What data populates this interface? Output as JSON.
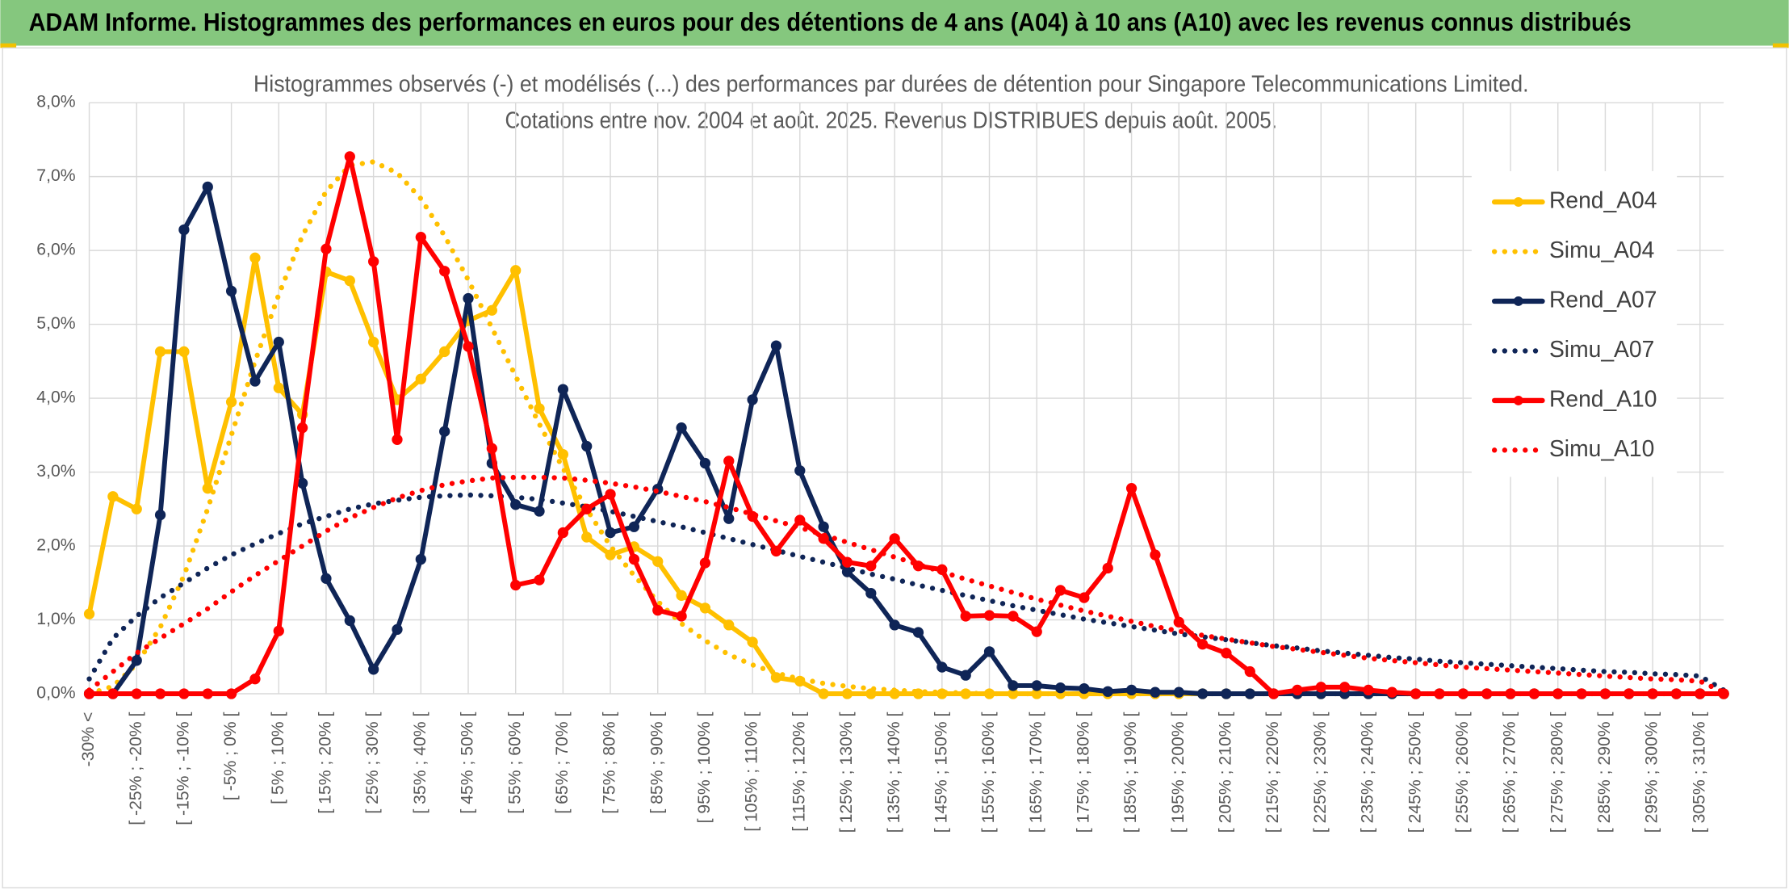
{
  "chart_data": {
    "type": "line",
    "title": "ADAM Informe. Histogrammes des performances en euros pour des détentions de 4 ans (A04) à 10 ans (A10) avec les revenus connus distribués",
    "subtitle": [
      "Histogrammes observés (-) et modélisés (...) des performances par durées de détention pour Singapore Telecommunications Limited.",
      "Cotations entre nov. 2004 et août. 2025. Revenus DISTRIBUES depuis août. 2005."
    ],
    "categories": [
      "-30% <",
      null,
      "[ -25% ; -20% [",
      null,
      "[ -15% ; -10% [",
      null,
      "[ -5% ; 0% [",
      null,
      "[ 5% ; 10% [",
      null,
      "[ 15% ; 20% [",
      null,
      "[ 25% ; 30% [",
      null,
      "[ 35% ; 40% [",
      null,
      "[ 45% ; 50% [",
      null,
      "[ 55% ; 60% [",
      null,
      "[ 65% ; 70% [",
      null,
      "[ 75% ; 80% [",
      null,
      "[ 85% ; 90% [",
      null,
      "[ 95% ; 100% [",
      null,
      "[ 105% ; 110% [",
      null,
      "[ 115% ; 120% [",
      null,
      "[ 125% ; 130% [",
      null,
      "[ 135% ; 140% [",
      null,
      "[ 145% ; 150% [",
      null,
      "[ 155% ; 160% [",
      null,
      "[ 165% ; 170% [",
      null,
      "[ 175% ; 180% [",
      null,
      "[ 185% ; 190% [",
      null,
      "[ 195% ; 200% [",
      null,
      "[ 205% ; 210% [",
      null,
      "[ 215% ; 220% [",
      null,
      "[ 225% ; 230% [",
      null,
      "[ 235% ; 240% [",
      null,
      "[ 245% ; 250% [",
      null,
      "[ 255% ; 260% [",
      null,
      "[ 265% ; 270% [",
      null,
      "[ 275% ; 280% [",
      null,
      "[ 285% ; 290% [",
      null,
      "[ 295% ; 300% [",
      null,
      "[ 305% ; 310% [",
      null
    ],
    "ylim": [
      0,
      8
    ],
    "yticks": [
      {
        "value": 0,
        "label": "0,0%"
      },
      {
        "value": 1,
        "label": "1,0%"
      },
      {
        "value": 2,
        "label": "2,0%"
      },
      {
        "value": 3,
        "label": "3,0%"
      },
      {
        "value": 4,
        "label": "4,0%"
      },
      {
        "value": 5,
        "label": "5,0%"
      },
      {
        "value": 6,
        "label": "6,0%"
      },
      {
        "value": 7,
        "label": "7,0%"
      },
      {
        "value": 8,
        "label": "8,0%"
      }
    ],
    "grid": true,
    "legend": "right",
    "series": [
      {
        "name": "Rend_A04",
        "color": "#FFC000",
        "style": "solid",
        "markers": true,
        "values": [
          1.08,
          2.67,
          2.5,
          4.63,
          4.63,
          2.78,
          3.95,
          5.9,
          4.14,
          3.78,
          5.71,
          5.59,
          4.76,
          3.98,
          4.26,
          4.63,
          5.05,
          5.19,
          5.73,
          3.86,
          3.24,
          2.12,
          1.88,
          1.99,
          1.79,
          1.33,
          1.16,
          0.93,
          0.7,
          0.22,
          0.17,
          0,
          0,
          0,
          0,
          0,
          0,
          0,
          0,
          0,
          0,
          0,
          0,
          0,
          0,
          0,
          0,
          0,
          0,
          0,
          0,
          0,
          0,
          0,
          0,
          0,
          0,
          0,
          0,
          0,
          0,
          0,
          0,
          0,
          0,
          0,
          0,
          0,
          0,
          0
        ]
      },
      {
        "name": "Simu_A04",
        "color": "#FFC000",
        "style": "dotted",
        "markers": false,
        "values": [
          0,
          0.1,
          0.4,
          0.9,
          1.6,
          2.5,
          3.5,
          4.5,
          5.4,
          6.2,
          6.8,
          7.15,
          7.2,
          7.05,
          6.7,
          6.2,
          5.6,
          4.95,
          4.3,
          3.65,
          3.05,
          2.5,
          2.0,
          1.6,
          1.25,
          0.95,
          0.72,
          0.53,
          0.39,
          0.28,
          0.2,
          0.14,
          0.1,
          0.07,
          0.05,
          0.03,
          0.02,
          0.01,
          0,
          0,
          0,
          0,
          0,
          0,
          0,
          0,
          0,
          0,
          0,
          0,
          0,
          0,
          0,
          0,
          0,
          0,
          0,
          0,
          0,
          0,
          0,
          0,
          0,
          0,
          0,
          0,
          0,
          0,
          0,
          0
        ]
      },
      {
        "name": "Rend_A07",
        "color": "#0F2557",
        "style": "solid",
        "markers": true,
        "values": [
          0,
          0,
          0.45,
          2.42,
          6.28,
          6.86,
          5.45,
          4.23,
          4.76,
          2.85,
          1.56,
          0.99,
          0.33,
          0.87,
          1.82,
          3.55,
          5.35,
          3.12,
          2.56,
          2.47,
          4.12,
          3.35,
          2.18,
          2.26,
          2.77,
          3.6,
          3.12,
          2.37,
          3.98,
          4.71,
          3.02,
          2.26,
          1.65,
          1.36,
          0.93,
          0.83,
          0.36,
          0.25,
          0.57,
          0.11,
          0.11,
          0.08,
          0.07,
          0.03,
          0.05,
          0.02,
          0.02,
          0,
          0,
          0,
          0,
          0,
          0,
          0,
          0,
          0,
          0,
          0,
          0,
          0,
          0,
          0,
          0,
          0,
          0,
          0,
          0,
          0,
          0,
          0
        ]
      },
      {
        "name": "Simu_A07",
        "color": "#0F2557",
        "style": "dotted",
        "markers": false,
        "values": [
          0.2,
          0.75,
          1.05,
          1.3,
          1.5,
          1.7,
          1.88,
          2.03,
          2.17,
          2.3,
          2.4,
          2.5,
          2.57,
          2.62,
          2.66,
          2.68,
          2.69,
          2.68,
          2.66,
          2.63,
          2.58,
          2.53,
          2.47,
          2.4,
          2.33,
          2.26,
          2.18,
          2.1,
          2.02,
          1.94,
          1.86,
          1.78,
          1.7,
          1.62,
          1.55,
          1.47,
          1.4,
          1.33,
          1.26,
          1.19,
          1.13,
          1.07,
          1.01,
          0.96,
          0.91,
          0.86,
          0.81,
          0.77,
          0.73,
          0.69,
          0.65,
          0.62,
          0.58,
          0.55,
          0.52,
          0.49,
          0.47,
          0.44,
          0.42,
          0.4,
          0.38,
          0.36,
          0.34,
          0.32,
          0.3,
          0.29,
          0.27,
          0.26,
          0.24,
          0.05
        ]
      },
      {
        "name": "Rend_A10",
        "color": "#FF0000",
        "style": "solid",
        "markers": true,
        "values": [
          0,
          0,
          0,
          0,
          0,
          0,
          0,
          0.2,
          0.85,
          3.6,
          6.02,
          7.27,
          5.85,
          3.44,
          6.18,
          5.72,
          4.7,
          3.32,
          1.47,
          1.54,
          2.18,
          2.5,
          2.7,
          1.82,
          1.13,
          1.05,
          1.77,
          3.15,
          2.4,
          1.93,
          2.35,
          2.1,
          1.78,
          1.73,
          2.1,
          1.73,
          1.68,
          1.05,
          1.06,
          1.05,
          0.84,
          1.4,
          1.3,
          1.7,
          2.78,
          1.88,
          0.97,
          0.67,
          0.55,
          0.3,
          0,
          0.05,
          0.09,
          0.09,
          0.05,
          0.02,
          0,
          0,
          0,
          0,
          0,
          0,
          0,
          0,
          0,
          0,
          0,
          0,
          0,
          0
        ]
      },
      {
        "name": "Simu_A10",
        "color": "#FF0000",
        "style": "dotted",
        "markers": false,
        "values": [
          0.05,
          0.3,
          0.55,
          0.75,
          0.95,
          1.15,
          1.38,
          1.6,
          1.8,
          2.0,
          2.2,
          2.38,
          2.52,
          2.65,
          2.75,
          2.83,
          2.88,
          2.92,
          2.93,
          2.93,
          2.92,
          2.89,
          2.85,
          2.8,
          2.74,
          2.67,
          2.6,
          2.52,
          2.43,
          2.34,
          2.25,
          2.15,
          2.05,
          1.95,
          1.85,
          1.75,
          1.65,
          1.55,
          1.46,
          1.37,
          1.28,
          1.2,
          1.12,
          1.05,
          0.98,
          0.91,
          0.85,
          0.79,
          0.74,
          0.69,
          0.64,
          0.6,
          0.56,
          0.52,
          0.48,
          0.45,
          0.42,
          0.39,
          0.36,
          0.34,
          0.32,
          0.3,
          0.28,
          0.26,
          0.24,
          0.22,
          0.2,
          0.19,
          0.17,
          0.02
        ]
      }
    ]
  }
}
